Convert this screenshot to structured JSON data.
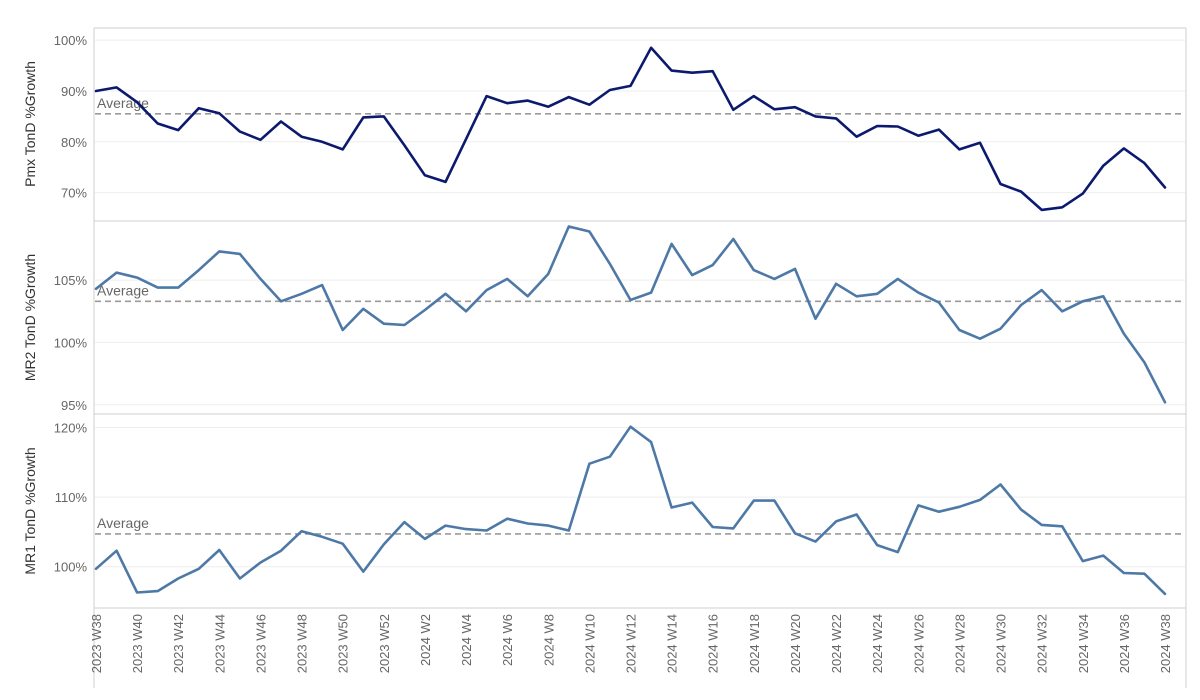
{
  "chart_data": {
    "type": "line",
    "x": [
      "2023 W38",
      "2023 W39",
      "2023 W40",
      "2023 W41",
      "2023 W42",
      "2023 W43",
      "2023 W44",
      "2023 W45",
      "2023 W46",
      "2023 W47",
      "2023 W48",
      "2023 W49",
      "2023 W50",
      "2023 W51",
      "2023 W52",
      "2024 W1",
      "2024 W2",
      "2024 W3",
      "2024 W4",
      "2024 W5",
      "2024 W6",
      "2024 W7",
      "2024 W8",
      "2024 W9",
      "2024 W10",
      "2024 W11",
      "2024 W12",
      "2024 W13",
      "2024 W14",
      "2024 W15",
      "2024 W16",
      "2024 W17",
      "2024 W18",
      "2024 W19",
      "2024 W20",
      "2024 W21",
      "2024 W22",
      "2024 W23",
      "2024 W24",
      "2024 W25",
      "2024 W26",
      "2024 W27",
      "2024 W28",
      "2024 W29",
      "2024 W30",
      "2024 W31",
      "2024 W32",
      "2024 W33",
      "2024 W34",
      "2024 W35",
      "2024 W36",
      "2024 W37",
      "2024 W38"
    ],
    "x_tick_labels": [
      "2023 W38",
      "2023 W40",
      "2023 W42",
      "2023 W44",
      "2023 W46",
      "2023 W48",
      "2023 W50",
      "2023 W52",
      "2024 W2",
      "2024 W4",
      "2024 W6",
      "2024 W8",
      "2024 W10",
      "2024 W12",
      "2024 W14",
      "2024 W16",
      "2024 W18",
      "2024 W20",
      "2024 W22",
      "2024 W24",
      "2024 W26",
      "2024 W28",
      "2024 W30",
      "2024 W32",
      "2024 W34",
      "2024 W36",
      "2024 W38"
    ],
    "average_label": "Average",
    "panels": [
      {
        "ylabel": "Pmx TonD %Growth",
        "color": "#0b1a6e",
        "ylim": [
          65,
          102
        ],
        "yticks": [
          70,
          80,
          90,
          100
        ],
        "ytick_labels": [
          "70%",
          "80%",
          "90%",
          "100%"
        ],
        "average": 85.5,
        "values": [
          90.0,
          90.7,
          87.8,
          83.6,
          82.3,
          86.6,
          85.6,
          82.0,
          80.4,
          84.0,
          81.0,
          80.0,
          78.5,
          84.8,
          85.0,
          79.3,
          73.4,
          72.1,
          80.5,
          89.0,
          87.6,
          88.1,
          86.9,
          88.8,
          87.3,
          90.2,
          91.0,
          98.5,
          94.0,
          93.6,
          93.9,
          86.3,
          89.0,
          86.4,
          86.8,
          85.0,
          84.6,
          81.0,
          83.1,
          83.0,
          81.2,
          82.4,
          78.5,
          79.8,
          71.7,
          70.2,
          66.6,
          67.1,
          69.8,
          75.3,
          78.7,
          75.8,
          71.0
        ]
      },
      {
        "ylabel": "MR2 TonD %Growth",
        "color": "#4e79a7",
        "ylim": [
          94.5,
          109.5
        ],
        "yticks": [
          95,
          100,
          105
        ],
        "ytick_labels": [
          "95%",
          "100%",
          "105%"
        ],
        "average": 103.3,
        "values": [
          104.3,
          105.6,
          105.2,
          104.4,
          104.4,
          105.8,
          107.3,
          107.1,
          105.1,
          103.3,
          103.9,
          104.6,
          101.0,
          102.7,
          101.5,
          101.4,
          102.6,
          103.9,
          102.5,
          104.2,
          105.1,
          103.7,
          105.5,
          109.3,
          108.9,
          106.3,
          103.4,
          104.0,
          107.9,
          105.4,
          106.2,
          108.3,
          105.8,
          105.1,
          105.9,
          101.9,
          104.7,
          103.7,
          103.9,
          105.1,
          104.0,
          103.2,
          101.0,
          100.3,
          101.1,
          103.0,
          104.2,
          102.5,
          103.3,
          103.7,
          100.7,
          98.4,
          95.2
        ]
      },
      {
        "ylabel": "MR1 TonD %Growth",
        "color": "#4e79a7",
        "ylim": [
          94.5,
          121.5
        ],
        "yticks": [
          100,
          110,
          120
        ],
        "ytick_labels": [
          "100%",
          "110%",
          "120%"
        ],
        "average": 104.7,
        "values": [
          99.7,
          102.3,
          96.3,
          96.5,
          98.3,
          99.7,
          102.4,
          98.3,
          100.6,
          102.3,
          105.1,
          104.3,
          103.3,
          99.3,
          103.2,
          106.4,
          104.0,
          105.9,
          105.4,
          105.2,
          106.9,
          106.2,
          105.9,
          105.2,
          114.8,
          115.8,
          120.1,
          117.9,
          108.5,
          109.2,
          105.7,
          105.5,
          109.5,
          109.5,
          104.8,
          103.6,
          106.5,
          107.5,
          103.1,
          102.1,
          108.8,
          107.9,
          108.6,
          109.6,
          111.8,
          108.2,
          106.0,
          105.8,
          100.8,
          101.6,
          99.1,
          99.0,
          96.1
        ]
      }
    ]
  }
}
